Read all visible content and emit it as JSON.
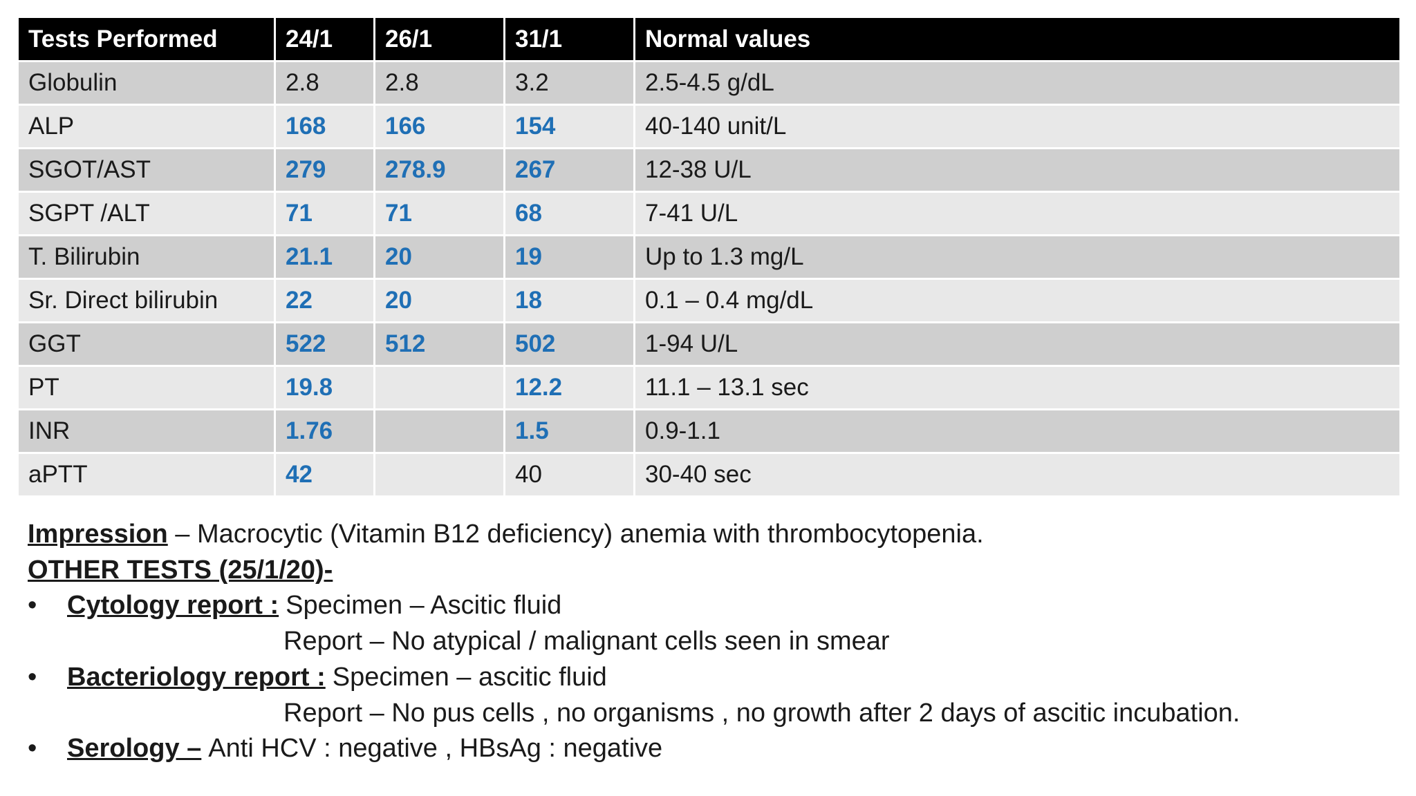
{
  "table": {
    "header": [
      "Tests Performed",
      "24/1",
      "26/1",
      "31/1",
      "Normal values"
    ],
    "rows": [
      [
        "Globulin",
        "2.8",
        "2.8",
        "3.2",
        "2.5-4.5 g/dL"
      ],
      [
        "ALP",
        "168",
        "166",
        "154",
        "40-140 unit/L"
      ],
      [
        "SGOT/AST",
        "279",
        "278.9",
        "267",
        "12-38 U/L"
      ],
      [
        "SGPT /ALT",
        "71",
        "71",
        "68",
        "7-41 U/L"
      ],
      [
        "T. Bilirubin",
        "21.1",
        "20",
        "19",
        "Up to 1.3 mg/L"
      ],
      [
        "Sr. Direct bilirubin",
        "22",
        "20",
        "18",
        "0.1 – 0.4 mg/dL"
      ],
      [
        "GGT",
        "522",
        "512",
        "502",
        "1-94 U/L"
      ],
      [
        "PT",
        "19.8",
        null,
        "12.2",
        "11.1 – 13.1 sec"
      ],
      [
        "INR",
        "1.76",
        null,
        "1.5",
        "0.9-1.1"
      ],
      [
        "aPTT",
        "42",
        null,
        "40",
        "30-40 sec"
      ]
    ]
  },
  "impression": {
    "label": "Impression",
    "text": "– Macrocytic (Vitamin B12 deficiency) anemia with thrombocytopenia."
  },
  "other_tests": {
    "heading": "OTHER TESTS (25/1/20)-",
    "items": [
      {
        "label": "Cytology report :",
        "lines": [
          "Specimen – Ascitic fluid",
          "Report – No atypical / malignant cells seen in smear"
        ]
      },
      {
        "label": "Bacteriology report :",
        "lines": [
          "Specimen – ascitic fluid",
          "Report – No pus cells , no organisms , no growth after 2 days of ascitic incubation."
        ]
      },
      {
        "label": "Serology –",
        "lines": [
          "Anti HCV : negative , HBsAg : negative"
        ]
      }
    ]
  }
}
